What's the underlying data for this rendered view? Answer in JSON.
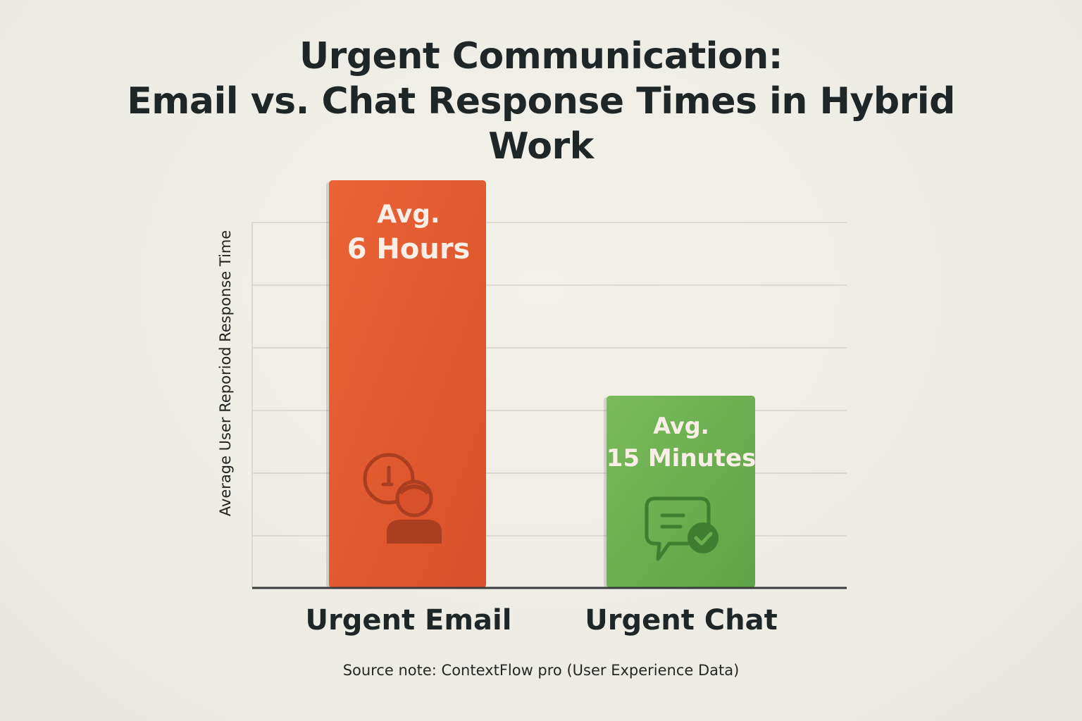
{
  "chart_data": {
    "type": "bar",
    "title": [
      "Urgent Communication:",
      "Email vs. Chat Response Times in Hybrid",
      "Work"
    ],
    "ylabel": "Average User Reporiod Response Time",
    "categories": [
      "Urgent Email",
      "Urgent Chat"
    ],
    "values_minutes": [
      360,
      15
    ],
    "data_labels": [
      {
        "line1": "Avg.",
        "line2": "6 Hours"
      },
      {
        "line1": "Avg.",
        "line2": "15 Minutes"
      }
    ],
    "bar_colors": [
      "#e55a2f",
      "#6aae4e"
    ],
    "icons": [
      "clock-person-icon",
      "chat-check-icon"
    ],
    "grid": true
  },
  "source_note": "Source note: ContextFlow pro (User Experience Data)"
}
